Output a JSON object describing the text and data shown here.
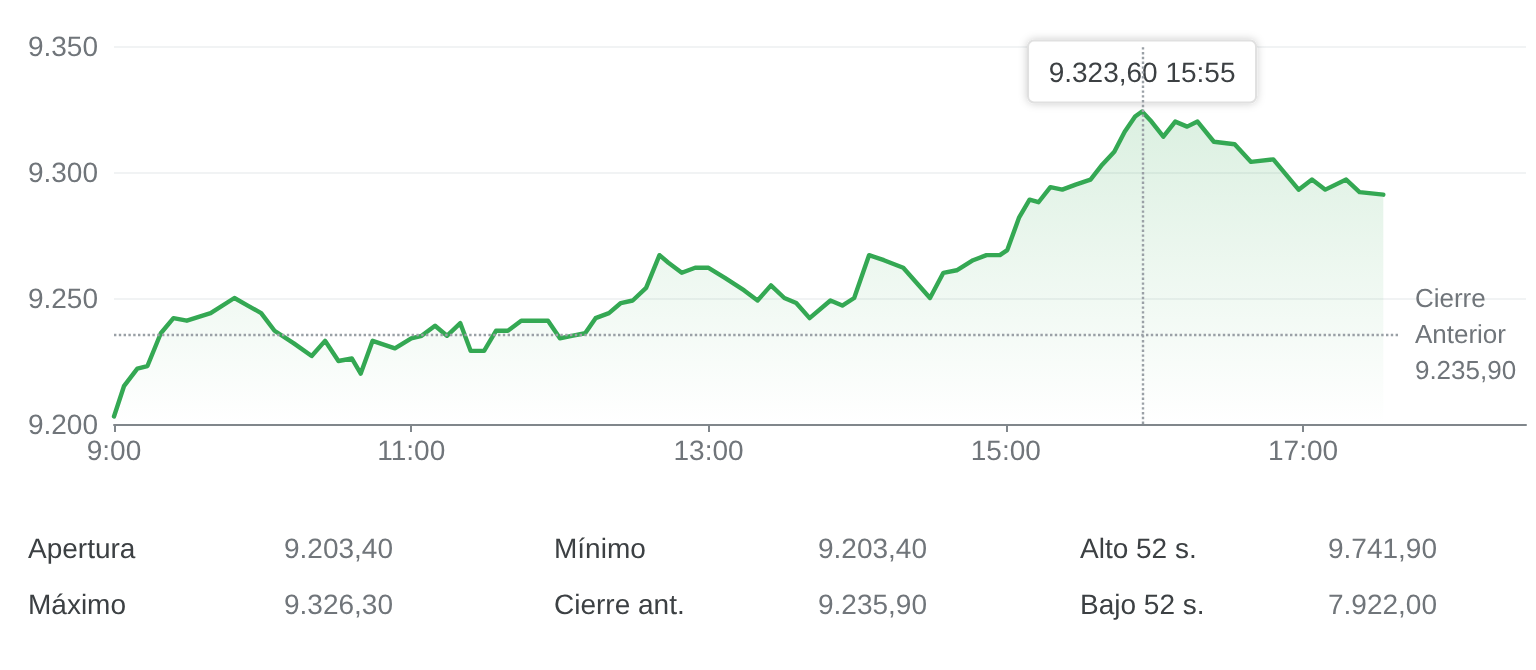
{
  "chart_data": {
    "type": "area",
    "x": [
      9,
      9.067,
      9.157,
      9.225,
      9.315,
      9.4,
      9.49,
      9.65,
      9.81,
      9.9,
      9.99,
      10.08,
      10.21,
      10.33,
      10.42,
      10.51,
      10.6,
      10.66,
      10.74,
      10.89,
      11,
      11.07,
      11.16,
      11.24,
      11.33,
      11.4,
      11.49,
      11.57,
      11.65,
      11.74,
      11.83,
      11.92,
      12,
      12.08,
      12.17,
      12.24,
      12.33,
      12.41,
      12.49,
      12.58,
      12.67,
      12.73,
      12.82,
      12.91,
      13,
      13.11,
      13.24,
      13.33,
      13.42,
      13.51,
      13.59,
      13.68,
      13.82,
      13.9,
      13.98,
      14.08,
      14.18,
      14.31,
      14.49,
      14.58,
      14.67,
      14.78,
      14.87,
      14.96,
      15.01,
      15.09,
      15.16,
      15.22,
      15.3,
      15.38,
      15.47,
      15.57,
      15.65,
      15.73,
      15.8,
      15.87,
      15.9167,
      15.98,
      16.06,
      16.14,
      16.22,
      16.29,
      16.4,
      16.54,
      16.65,
      16.8,
      16.97,
      17.06,
      17.15,
      17.29,
      17.38,
      17.54
    ],
    "series": [
      {
        "color": "#34a853",
        "values": [
          9203,
          9215,
          9222,
          9223,
          9236,
          9242,
          9241,
          9244,
          9250,
          9247,
          9244,
          9237,
          9232,
          9227,
          9233,
          9225,
          9226,
          9220,
          9233,
          9230,
          9234,
          9235,
          9239,
          9235,
          9240,
          9229,
          9229,
          9237,
          9237,
          9241,
          9241,
          9241,
          9234,
          9235,
          9236,
          9242,
          9244,
          9248,
          9249,
          9254,
          9267,
          9264,
          9260,
          9262,
          9262,
          9258,
          9253,
          9249,
          9255,
          9250,
          9248,
          9242,
          9249,
          9247,
          9250,
          9267,
          9265,
          9262,
          9250,
          9260,
          9261,
          9265,
          9267,
          9267,
          9269,
          9282,
          9289,
          9288,
          9294,
          9293,
          9295,
          9297,
          9303,
          9308,
          9316,
          9322,
          9324,
          9320,
          9314,
          9320,
          9318,
          9320,
          9312,
          9311,
          9304,
          9305,
          9293,
          9297,
          9293,
          9297,
          9292,
          9291
        ]
      }
    ],
    "xlim": [
      9,
      18.5
    ],
    "xticks": [
      {
        "value": 9,
        "label": "9:00"
      },
      {
        "value": 11,
        "label": "11:00"
      },
      {
        "value": 13,
        "label": "13:00"
      },
      {
        "value": 15,
        "label": "15:00"
      },
      {
        "value": 17,
        "label": "17:00"
      }
    ],
    "ylim": [
      9200,
      9350
    ],
    "yticks": [
      {
        "value": 9200,
        "label": "9.200"
      },
      {
        "value": 9250,
        "label": "9.250"
      },
      {
        "value": 9300,
        "label": "9.300"
      },
      {
        "value": 9350,
        "label": "9.350"
      }
    ],
    "grid": "y",
    "marker": "none",
    "line_style": "solid",
    "ref_lines": [
      {
        "axis": "y",
        "value": 9235.9,
        "label": "Cierre Anterior 9.235,90",
        "line_style": "dotted",
        "color": "#9aa0a6"
      },
      {
        "axis": "x",
        "value": 15.9167,
        "line_style": "dotted",
        "color": "#9aa0a6"
      }
    ],
    "annotations": [
      {
        "text": "9.323,60 15:55",
        "x": 15.9167,
        "y": 9323.6
      },
      "Apertura",
      "9.203,40",
      "Mínimo",
      "9.203,40",
      "Alto 52 s.",
      "9.741,90",
      "Máximo",
      "9.326,30",
      "Cierre ant.",
      "9.235,90",
      "Bajo 52 s.",
      "7.922,00"
    ]
  }
}
